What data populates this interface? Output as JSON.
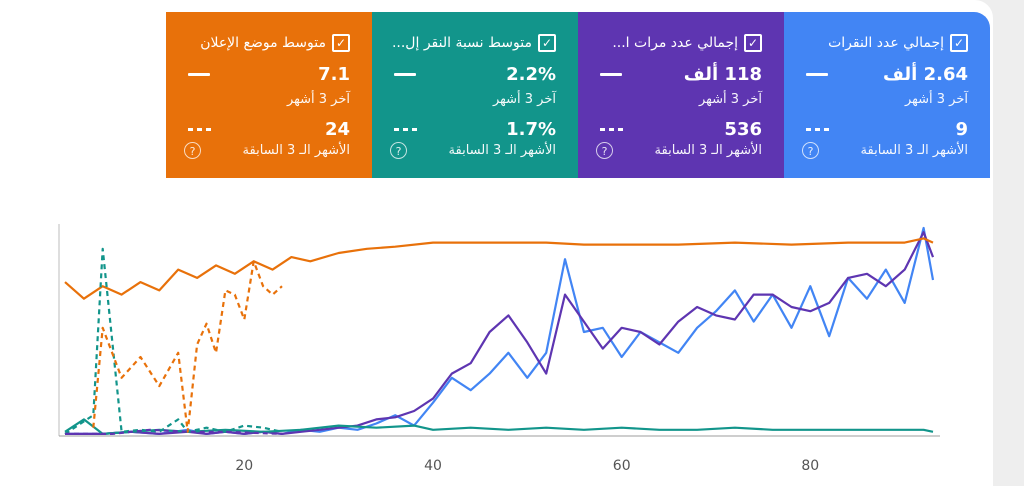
{
  "cards": [
    {
      "title": "متوسط موضع الإعلان",
      "value_current": "7.1",
      "label_current": "آخر 3 أشهر",
      "value_previous": "24",
      "label_previous": "الأشهر الـ 3 السابقة",
      "color": "#e8710a"
    },
    {
      "title": "متوسط نسبة النقر إل...",
      "value_current": "2.2%",
      "label_current": "آخر 3 أشهر",
      "value_previous": "1.7%",
      "label_previous": "الأشهر الـ 3 السابقة",
      "color": "#12958b"
    },
    {
      "title": "إجمالي عدد مرات ا...",
      "value_current": "118 ألف",
      "label_current": "آخر 3 أشهر",
      "value_previous": "536",
      "label_previous": "الأشهر الـ 3 السابقة",
      "color": "#5e35b1"
    },
    {
      "title": "إجمالي عدد النقرات",
      "value_current": "2.64 ألف",
      "label_current": "آخر 3 أشهر",
      "value_previous": "9",
      "label_previous": "الأشهر الـ 3 السابقة",
      "color": "#4285f4"
    }
  ],
  "icons": {
    "checkbox": "checkbox-checked-icon",
    "help": "help-circle-icon",
    "help_glyph": "?",
    "check_glyph": "✓"
  },
  "chart_data": {
    "type": "line",
    "x_ticks": [
      "20",
      "40",
      "60",
      "80"
    ],
    "x_range": [
      1,
      93
    ],
    "y_range": [
      0,
      100
    ],
    "series": [
      {
        "metric": "clicks_current",
        "color": "#4285f4",
        "style": "solid",
        "points": [
          [
            1,
            1
          ],
          [
            5,
            1
          ],
          [
            8,
            2
          ],
          [
            11,
            1
          ],
          [
            14,
            3
          ],
          [
            16,
            1
          ],
          [
            18,
            2
          ],
          [
            20,
            1
          ],
          [
            22,
            2
          ],
          [
            24,
            1
          ],
          [
            26,
            3
          ],
          [
            28,
            2
          ],
          [
            30,
            4
          ],
          [
            32,
            3
          ],
          [
            34,
            6
          ],
          [
            36,
            10
          ],
          [
            38,
            5
          ],
          [
            40,
            16
          ],
          [
            42,
            28
          ],
          [
            44,
            22
          ],
          [
            46,
            30
          ],
          [
            48,
            40
          ],
          [
            50,
            28
          ],
          [
            52,
            40
          ],
          [
            54,
            85
          ],
          [
            56,
            50
          ],
          [
            58,
            52
          ],
          [
            60,
            38
          ],
          [
            62,
            50
          ],
          [
            64,
            45
          ],
          [
            66,
            40
          ],
          [
            68,
            52
          ],
          [
            70,
            60
          ],
          [
            72,
            70
          ],
          [
            74,
            55
          ],
          [
            76,
            68
          ],
          [
            78,
            52
          ],
          [
            80,
            72
          ],
          [
            82,
            48
          ],
          [
            84,
            76
          ],
          [
            86,
            66
          ],
          [
            88,
            80
          ],
          [
            90,
            64
          ],
          [
            92,
            100
          ],
          [
            93,
            75
          ]
        ]
      },
      {
        "metric": "impressions_current",
        "color": "#5e35b1",
        "style": "solid",
        "points": [
          [
            1,
            1
          ],
          [
            5,
            1
          ],
          [
            8,
            2
          ],
          [
            11,
            1
          ],
          [
            14,
            2
          ],
          [
            16,
            1
          ],
          [
            18,
            2
          ],
          [
            20,
            1
          ],
          [
            22,
            2
          ],
          [
            24,
            1
          ],
          [
            26,
            2
          ],
          [
            28,
            3
          ],
          [
            30,
            4
          ],
          [
            32,
            5
          ],
          [
            34,
            8
          ],
          [
            36,
            9
          ],
          [
            38,
            12
          ],
          [
            40,
            18
          ],
          [
            42,
            30
          ],
          [
            44,
            35
          ],
          [
            46,
            50
          ],
          [
            48,
            58
          ],
          [
            50,
            45
          ],
          [
            52,
            30
          ],
          [
            54,
            68
          ],
          [
            56,
            55
          ],
          [
            58,
            42
          ],
          [
            60,
            52
          ],
          [
            62,
            50
          ],
          [
            64,
            44
          ],
          [
            66,
            55
          ],
          [
            68,
            62
          ],
          [
            70,
            58
          ],
          [
            72,
            56
          ],
          [
            74,
            68
          ],
          [
            76,
            68
          ],
          [
            78,
            62
          ],
          [
            80,
            60
          ],
          [
            82,
            64
          ],
          [
            84,
            76
          ],
          [
            86,
            78
          ],
          [
            88,
            72
          ],
          [
            90,
            80
          ],
          [
            92,
            98
          ],
          [
            93,
            86
          ]
        ]
      },
      {
        "metric": "ctr_current",
        "color": "#12958b",
        "style": "solid",
        "points": [
          [
            1,
            2
          ],
          [
            3,
            8
          ],
          [
            5,
            1
          ],
          [
            8,
            2
          ],
          [
            11,
            3
          ],
          [
            14,
            2
          ],
          [
            18,
            3
          ],
          [
            22,
            2
          ],
          [
            26,
            3
          ],
          [
            30,
            5
          ],
          [
            34,
            4
          ],
          [
            38,
            5
          ],
          [
            40,
            3
          ],
          [
            44,
            4
          ],
          [
            48,
            3
          ],
          [
            52,
            4
          ],
          [
            56,
            3
          ],
          [
            60,
            4
          ],
          [
            64,
            3
          ],
          [
            68,
            3
          ],
          [
            72,
            4
          ],
          [
            76,
            3
          ],
          [
            80,
            3
          ],
          [
            84,
            3
          ],
          [
            88,
            3
          ],
          [
            92,
            3
          ],
          [
            93,
            2
          ]
        ]
      },
      {
        "metric": "position_current",
        "color": "#e8710a",
        "style": "solid",
        "points": [
          [
            1,
            74
          ],
          [
            3,
            66
          ],
          [
            5,
            72
          ],
          [
            7,
            68
          ],
          [
            9,
            74
          ],
          [
            11,
            70
          ],
          [
            13,
            80
          ],
          [
            15,
            76
          ],
          [
            17,
            82
          ],
          [
            19,
            78
          ],
          [
            21,
            84
          ],
          [
            23,
            80
          ],
          [
            25,
            86
          ],
          [
            27,
            84
          ],
          [
            30,
            88
          ],
          [
            33,
            90
          ],
          [
            36,
            91
          ],
          [
            40,
            93
          ],
          [
            46,
            93
          ],
          [
            52,
            93
          ],
          [
            56,
            92
          ],
          [
            60,
            92
          ],
          [
            66,
            92
          ],
          [
            72,
            93
          ],
          [
            78,
            92
          ],
          [
            84,
            93
          ],
          [
            90,
            93
          ],
          [
            92,
            95
          ],
          [
            93,
            93
          ]
        ]
      },
      {
        "metric": "ctr_previous",
        "color": "#12958b",
        "style": "dashed",
        "points": [
          [
            1,
            1
          ],
          [
            4,
            10
          ],
          [
            5,
            90
          ],
          [
            7,
            2
          ],
          [
            9,
            3
          ],
          [
            11,
            2
          ],
          [
            13,
            8
          ],
          [
            14,
            2
          ],
          [
            16,
            4
          ],
          [
            18,
            2
          ],
          [
            20,
            5
          ],
          [
            22,
            4
          ],
          [
            24,
            2
          ]
        ]
      },
      {
        "metric": "position_previous",
        "color": "#e8710a",
        "style": "dashed",
        "points": [
          [
            4,
            4
          ],
          [
            5,
            52
          ],
          [
            7,
            28
          ],
          [
            9,
            38
          ],
          [
            11,
            24
          ],
          [
            13,
            40
          ],
          [
            14,
            2
          ],
          [
            15,
            44
          ],
          [
            16,
            54
          ],
          [
            17,
            40
          ],
          [
            18,
            70
          ],
          [
            19,
            68
          ],
          [
            20,
            56
          ],
          [
            21,
            84
          ],
          [
            22,
            72
          ],
          [
            23,
            68
          ],
          [
            24,
            72
          ]
        ]
      },
      {
        "metric": "impressions_previous",
        "color": "#5e35b1",
        "style": "dashed",
        "points": [
          [
            1,
            1
          ],
          [
            6,
            1
          ],
          [
            10,
            3
          ],
          [
            14,
            2
          ],
          [
            18,
            2
          ],
          [
            24,
            1
          ]
        ]
      }
    ]
  }
}
